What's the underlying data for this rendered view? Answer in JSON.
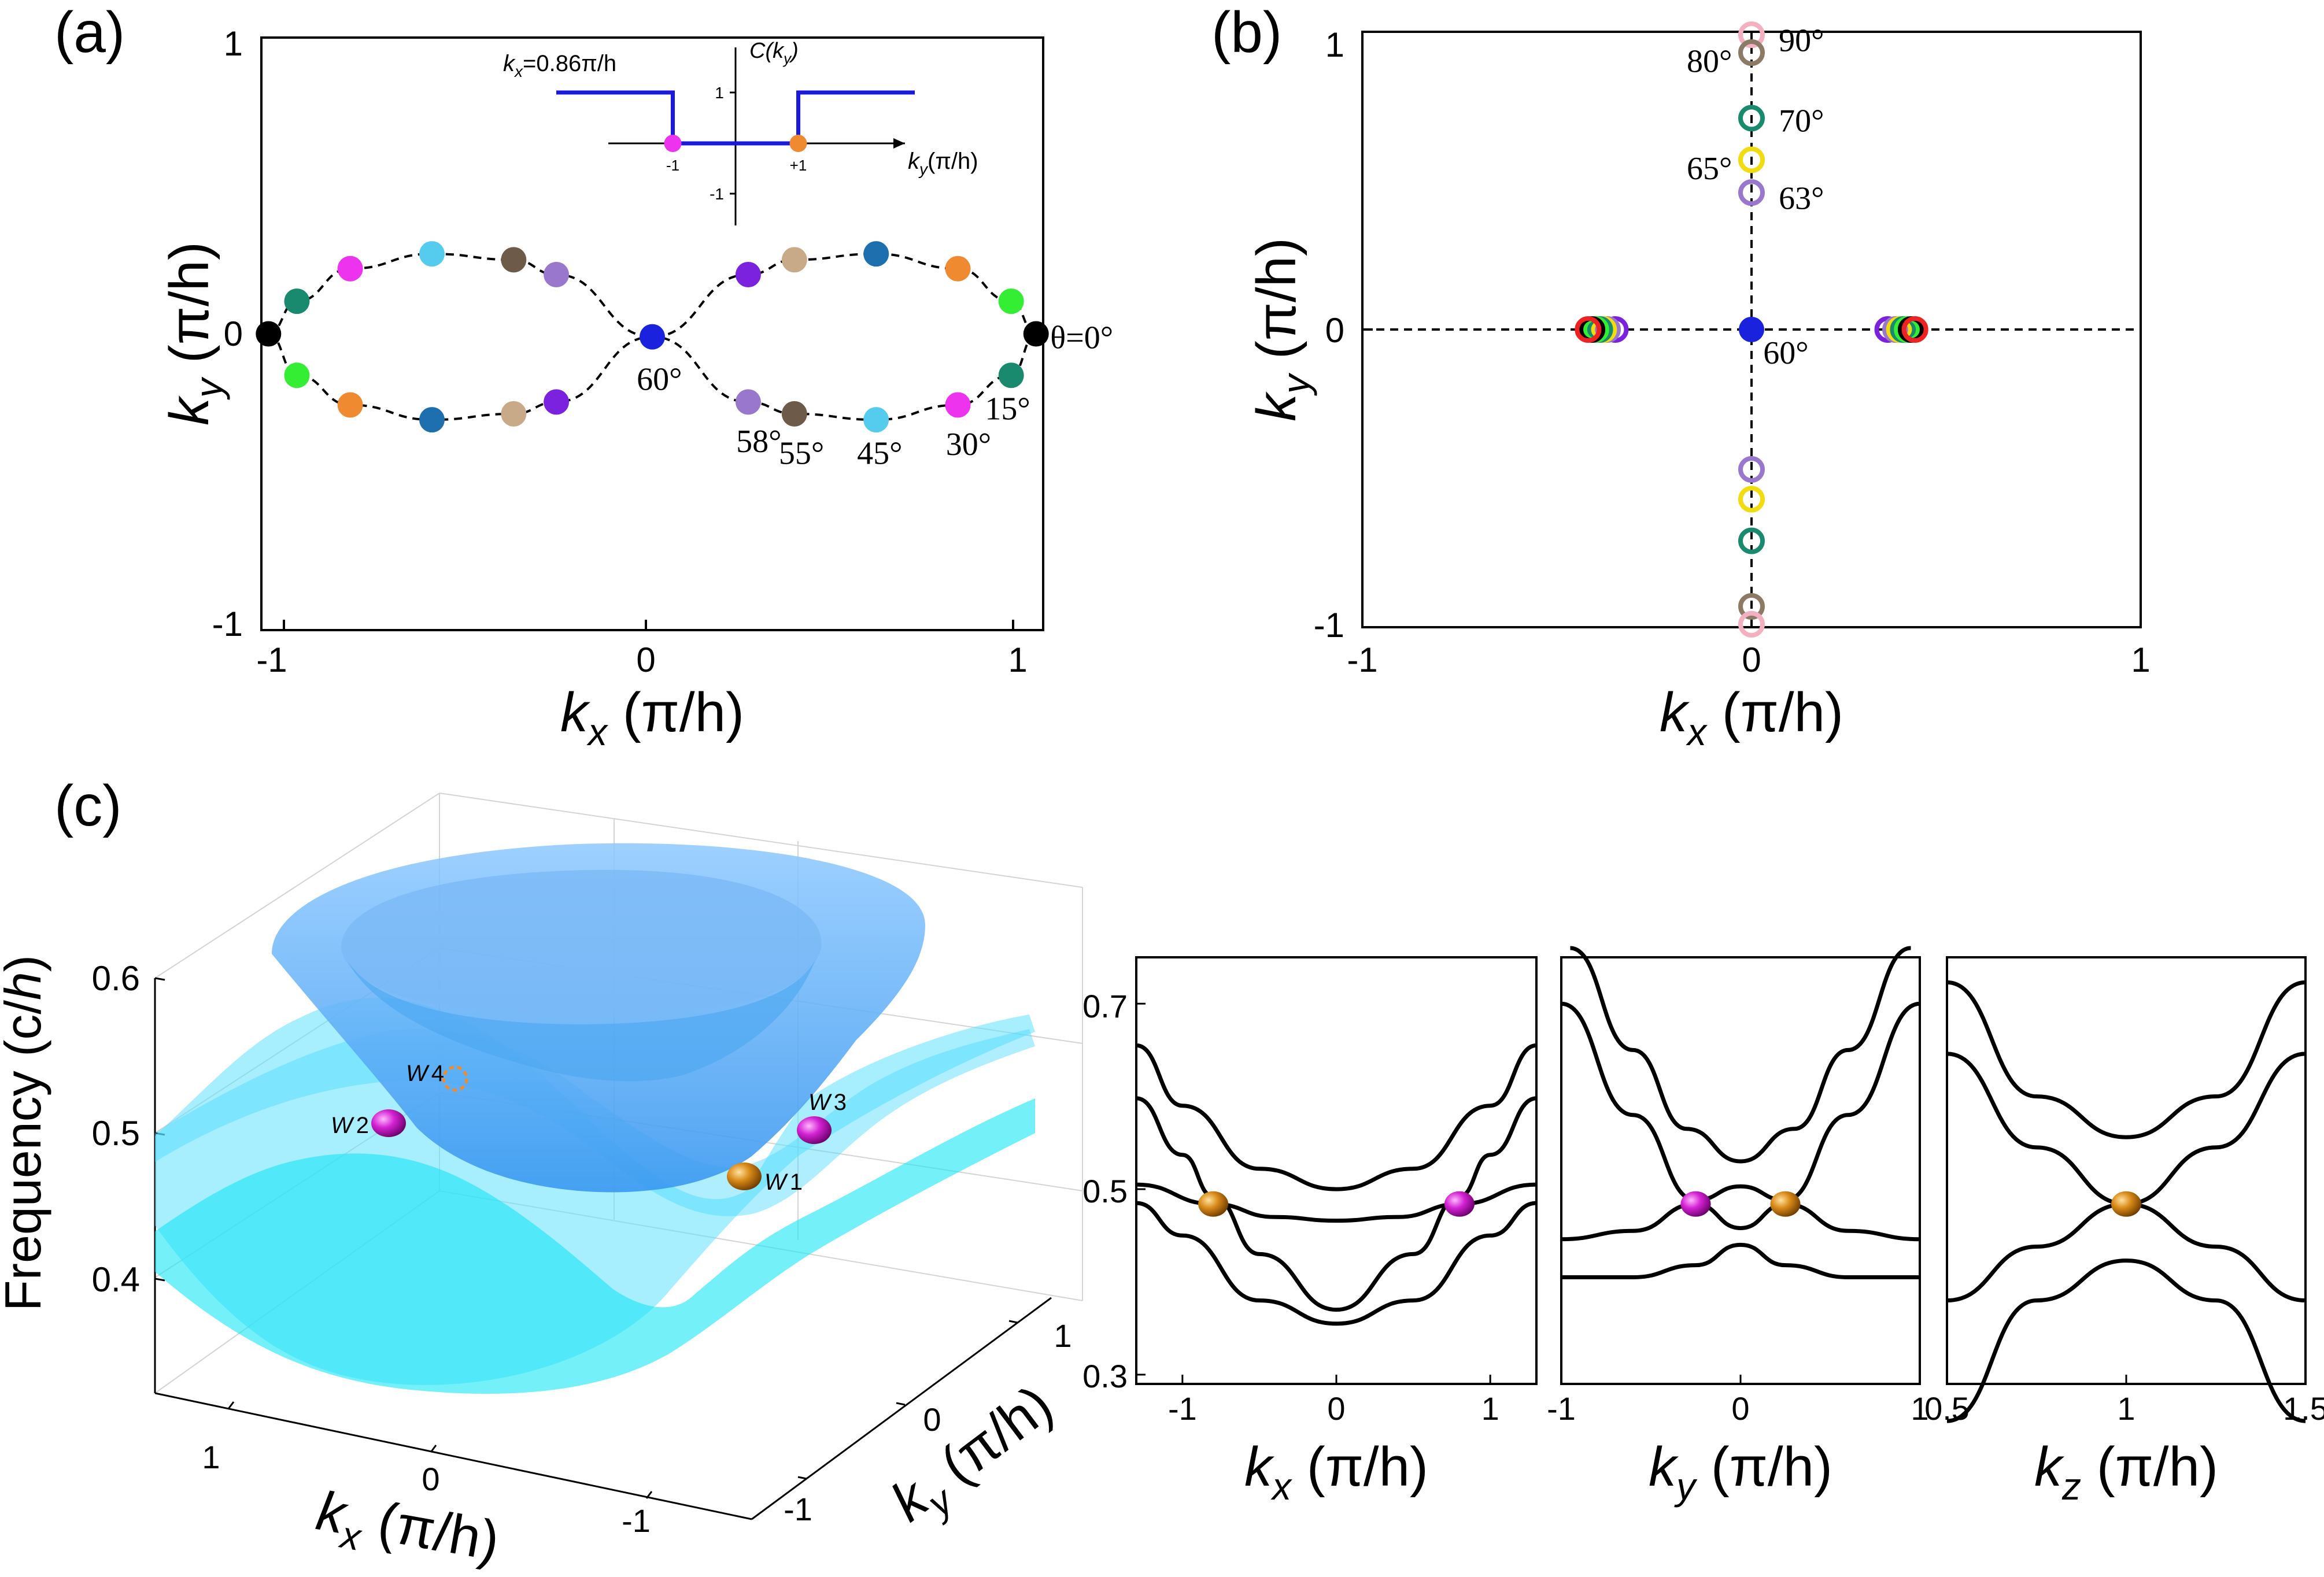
{
  "chart_data": [
    {
      "panel": "a",
      "type": "scatter",
      "panel_label": "(a)",
      "xlabel": {
        "var": "k",
        "sub": "x",
        "unit": " (π/h)"
      },
      "ylabel": {
        "var": "k",
        "sub": "y",
        "unit": " (π/h)"
      },
      "xlim": [
        -1.1,
        1.1
      ],
      "ylim": [
        -1,
        1
      ],
      "xticks": [
        "-1",
        "0",
        "1"
      ],
      "yticks": [
        "1",
        "0",
        "-1"
      ],
      "curve": "dashed figure-eight through the points",
      "points": [
        {
          "x": -1.08,
          "y": 0.0,
          "color": "#000000"
        },
        {
          "x": -1.0,
          "y": 0.11,
          "color": "#1a8a6e"
        },
        {
          "x": -1.0,
          "y": -0.14,
          "color": "#33ee33"
        },
        {
          "x": -0.85,
          "y": 0.22,
          "color": "#ee33ee"
        },
        {
          "x": -0.85,
          "y": -0.24,
          "color": "#f08a30"
        },
        {
          "x": -0.62,
          "y": 0.27,
          "color": "#55ccee"
        },
        {
          "x": -0.62,
          "y": -0.29,
          "color": "#1e6fae"
        },
        {
          "x": -0.39,
          "y": 0.25,
          "color": "#6e5a48"
        },
        {
          "x": -0.39,
          "y": -0.27,
          "color": "#c8aa88"
        },
        {
          "x": -0.27,
          "y": 0.2,
          "color": "#9977cc"
        },
        {
          "x": -0.27,
          "y": -0.23,
          "color": "#7a22dd"
        },
        {
          "x": 0.0,
          "y": -0.01,
          "color": "#1a22dd"
        },
        {
          "x": 0.27,
          "y": 0.2,
          "color": "#7a22dd"
        },
        {
          "x": 0.27,
          "y": -0.23,
          "color": "#9977cc"
        },
        {
          "x": 0.4,
          "y": 0.25,
          "color": "#c8aa88"
        },
        {
          "x": 0.4,
          "y": -0.27,
          "color": "#6e5a48"
        },
        {
          "x": 0.63,
          "y": 0.27,
          "color": "#1e6fae"
        },
        {
          "x": 0.63,
          "y": -0.29,
          "color": "#55ccee"
        },
        {
          "x": 0.86,
          "y": 0.22,
          "color": "#f08a30"
        },
        {
          "x": 0.86,
          "y": -0.24,
          "color": "#ee33ee"
        },
        {
          "x": 1.01,
          "y": 0.11,
          "color": "#33ee33"
        },
        {
          "x": 1.01,
          "y": -0.14,
          "color": "#1a8a6e"
        },
        {
          "x": 1.08,
          "y": 0.0,
          "color": "#000000"
        }
      ],
      "annotations": [
        {
          "text": "θ=0°",
          "x": 1.12,
          "y": -0.01,
          "anchor": "start"
        },
        {
          "text": "15°",
          "x": 1.0,
          "y": -0.25,
          "anchor": "middle"
        },
        {
          "text": "30°",
          "x": 0.89,
          "y": -0.37,
          "anchor": "middle"
        },
        {
          "text": "45°",
          "x": 0.64,
          "y": -0.4,
          "anchor": "middle"
        },
        {
          "text": "55°",
          "x": 0.42,
          "y": -0.4,
          "anchor": "middle"
        },
        {
          "text": "58°",
          "x": 0.3,
          "y": -0.36,
          "anchor": "middle"
        },
        {
          "text": "60°",
          "x": 0.02,
          "y": -0.15,
          "anchor": "middle"
        }
      ],
      "inset": {
        "title_var": "k",
        "title_sub": "x",
        "title_value": "=0.86π/h",
        "ylabel": "C(k",
        "ylabel_sub": "y",
        "ylabel_end": ")",
        "xlabel": "k",
        "xlabel_sub": "y",
        "xlabel_unit": "(π/h)",
        "x": [
          -1.0,
          -0.5,
          0.5,
          1.0
        ],
        "chern_values": [
          1,
          0,
          1
        ],
        "yticks": [
          "1",
          "-1"
        ],
        "markers": [
          {
            "x": -0.35,
            "color": "#ee33ee",
            "label": "-1"
          },
          {
            "x": 0.35,
            "color": "#f08a30",
            "label": "+1"
          }
        ]
      }
    },
    {
      "panel": "b",
      "type": "scatter",
      "panel_label": "(b)",
      "xlabel": {
        "var": "k",
        "sub": "x",
        "unit": " (π/h)"
      },
      "ylabel": {
        "var": "k",
        "sub": "y",
        "unit": " (π/h)"
      },
      "xlim": [
        -1,
        1
      ],
      "ylim": [
        -1,
        1
      ],
      "xticks": [
        "-1",
        "0",
        "1"
      ],
      "yticks": [
        "1",
        "0",
        "-1"
      ],
      "points": [
        {
          "x": 0.0,
          "y": 0.99,
          "color": "#f4b0c0",
          "marker": "open"
        },
        {
          "x": 0.0,
          "y": 0.93,
          "color": "#8c7a66",
          "marker": "open"
        },
        {
          "x": 0.0,
          "y": 0.71,
          "color": "#1a8a6e",
          "marker": "open"
        },
        {
          "x": 0.0,
          "y": 0.57,
          "color": "#f0dc10",
          "marker": "open"
        },
        {
          "x": 0.0,
          "y": 0.46,
          "color": "#9977cc",
          "marker": "open"
        },
        {
          "x": 0.0,
          "y": 0.0,
          "color": "#1a22dd",
          "marker": "filled"
        },
        {
          "x": 0.0,
          "y": -0.47,
          "color": "#9977cc",
          "marker": "open"
        },
        {
          "x": 0.0,
          "y": -0.57,
          "color": "#f0dc10",
          "marker": "open"
        },
        {
          "x": 0.0,
          "y": -0.71,
          "color": "#1a8a6e",
          "marker": "open"
        },
        {
          "x": 0.0,
          "y": -0.93,
          "color": "#8c7a66",
          "marker": "open"
        },
        {
          "x": 0.0,
          "y": -0.99,
          "color": "#f4b0c0",
          "marker": "open"
        },
        {
          "x": -0.35,
          "y": 0.0,
          "color": "#7a22dd",
          "marker": "open"
        },
        {
          "x": -0.37,
          "y": 0.0,
          "color": "#9977cc",
          "marker": "open"
        },
        {
          "x": -0.38,
          "y": 0.0,
          "color": "#f0dc10",
          "marker": "open"
        },
        {
          "x": -0.39,
          "y": 0.0,
          "color": "#1a8a6e",
          "marker": "open"
        },
        {
          "x": -0.4,
          "y": 0.0,
          "color": "#33ee33",
          "marker": "open"
        },
        {
          "x": -0.41,
          "y": 0.0,
          "color": "#000000",
          "marker": "open"
        },
        {
          "x": -0.42,
          "y": 0.0,
          "color": "#ee2222",
          "marker": "open"
        },
        {
          "x": 0.35,
          "y": 0.0,
          "color": "#7a22dd",
          "marker": "open"
        },
        {
          "x": 0.37,
          "y": 0.0,
          "color": "#9977cc",
          "marker": "open"
        },
        {
          "x": 0.38,
          "y": 0.0,
          "color": "#f0dc10",
          "marker": "open"
        },
        {
          "x": 0.39,
          "y": 0.0,
          "color": "#1a8a6e",
          "marker": "open"
        },
        {
          "x": 0.4,
          "y": 0.0,
          "color": "#33ee33",
          "marker": "open"
        },
        {
          "x": 0.41,
          "y": 0.0,
          "color": "#000000",
          "marker": "open"
        },
        {
          "x": 0.42,
          "y": 0.0,
          "color": "#ee2222",
          "marker": "open"
        }
      ],
      "annotations": [
        {
          "text": "90°",
          "x": 0.07,
          "y": 0.97,
          "anchor": "start"
        },
        {
          "text": "80°",
          "x": -0.05,
          "y": 0.9,
          "anchor": "end"
        },
        {
          "text": "70°",
          "x": 0.07,
          "y": 0.7,
          "anchor": "start"
        },
        {
          "text": "65°",
          "x": -0.05,
          "y": 0.54,
          "anchor": "end"
        },
        {
          "text": "63°",
          "x": 0.07,
          "y": 0.44,
          "anchor": "start"
        },
        {
          "text": "60°",
          "x": 0.03,
          "y": -0.08,
          "anchor": "start"
        }
      ]
    },
    {
      "panel": "c",
      "type": "surface",
      "panel_label": "(c)",
      "zlabel": {
        "text": "Frequency (c/",
        "var": "h",
        "end": ")"
      },
      "xlabel": {
        "var": "k",
        "sub": "x",
        "unit": " (π/h)"
      },
      "ylabel": {
        "var": "k",
        "sub": "y",
        "unit": " (π/h)"
      },
      "zticks": [
        "0.6",
        "0.5",
        "0.4"
      ],
      "xticks": [
        "1",
        "0",
        "-1"
      ],
      "yticks": [
        "1",
        "0",
        "-1"
      ],
      "weyl_points": [
        {
          "label": "W",
          "num": "1",
          "color": "#c27a10"
        },
        {
          "label": "W",
          "num": "2",
          "color": "#cc22cc"
        },
        {
          "label": "W",
          "num": "3",
          "color": "#cc22cc"
        },
        {
          "label": "W",
          "num": "4",
          "color": "#f08a30",
          "style": "dashed-open"
        }
      ]
    },
    {
      "panel": "c-kx",
      "type": "line",
      "xlabel": {
        "var": "k",
        "sub": "x",
        "unit": " (π/h)"
      },
      "xlim": [
        -1.3,
        1.3
      ],
      "ylim": [
        0.29,
        0.75
      ],
      "xticks": [
        "-1",
        "0",
        "1"
      ],
      "yticks": [
        "0.7",
        "0.5",
        "0.3"
      ],
      "series": [
        {
          "name": "band4",
          "x": [
            -1.3,
            -1.0,
            -0.5,
            0.0,
            0.5,
            1.0,
            1.3
          ],
          "y": [
            0.655,
            0.59,
            0.522,
            0.5,
            0.522,
            0.59,
            0.655
          ]
        },
        {
          "name": "band3",
          "x": [
            -1.3,
            -1.0,
            -0.8,
            -0.5,
            0.0,
            0.5,
            0.8,
            1.0,
            1.3
          ],
          "y": [
            0.598,
            0.537,
            0.492,
            0.43,
            0.37,
            0.43,
            0.492,
            0.537,
            0.598
          ]
        },
        {
          "name": "band2",
          "x": [
            -1.3,
            -0.8,
            -0.4,
            0.0,
            0.4,
            0.8,
            1.3
          ],
          "y": [
            0.505,
            0.484,
            0.47,
            0.466,
            0.47,
            0.484,
            0.505
          ]
        },
        {
          "name": "band1",
          "x": [
            -1.3,
            -1.0,
            -0.5,
            0.0,
            0.5,
            1.0,
            1.3
          ],
          "y": [
            0.485,
            0.45,
            0.38,
            0.355,
            0.38,
            0.45,
            0.485
          ]
        }
      ],
      "markers": [
        {
          "x": -0.8,
          "y": 0.484,
          "color": "#c27a10"
        },
        {
          "x": 0.8,
          "y": 0.484,
          "color": "#cc22cc"
        }
      ]
    },
    {
      "panel": "c-ky",
      "type": "line",
      "xlabel": {
        "var": "k",
        "sub": "y",
        "unit": " (π/h)"
      },
      "xlim": [
        -1,
        1
      ],
      "ylim": [
        0.29,
        0.75
      ],
      "xticks": [
        "-1",
        "0",
        "1"
      ],
      "series": [
        {
          "name": "band4",
          "x": [
            -0.95,
            -0.6,
            -0.3,
            0.0,
            0.3,
            0.6,
            0.95
          ],
          "y": [
            0.76,
            0.65,
            0.565,
            0.53,
            0.565,
            0.65,
            0.76
          ]
        },
        {
          "name": "band3",
          "x": [
            -1.0,
            -0.6,
            -0.25,
            0.0,
            0.25,
            0.6,
            1.0
          ],
          "y": [
            0.7,
            0.58,
            0.488,
            0.503,
            0.488,
            0.58,
            0.7
          ]
        },
        {
          "name": "band2",
          "x": [
            -1.0,
            -0.6,
            -0.25,
            0.0,
            0.25,
            0.6,
            1.0
          ],
          "y": [
            0.446,
            0.455,
            0.484,
            0.458,
            0.484,
            0.455,
            0.446
          ]
        },
        {
          "name": "band1",
          "x": [
            -1.0,
            -0.6,
            -0.25,
            0.0,
            0.25,
            0.6,
            1.0
          ],
          "y": [
            0.405,
            0.405,
            0.418,
            0.44,
            0.418,
            0.405,
            0.405
          ]
        }
      ],
      "markers": [
        {
          "x": -0.25,
          "y": 0.484,
          "color": "#cc22cc"
        },
        {
          "x": 0.25,
          "y": 0.484,
          "color": "#c27a10"
        }
      ]
    },
    {
      "panel": "c-kz",
      "type": "line",
      "xlabel": {
        "var": "k",
        "sub": "z",
        "unit": " (π/h)"
      },
      "xlim": [
        0.5,
        1.5
      ],
      "ylim": [
        0.29,
        0.75
      ],
      "xticks": [
        "0.5",
        "1",
        "1.5"
      ],
      "series": [
        {
          "name": "band4",
          "x": [
            0.5,
            0.75,
            1.0,
            1.25,
            1.5
          ],
          "y": [
            0.723,
            0.6,
            0.556,
            0.6,
            0.723
          ]
        },
        {
          "name": "band3",
          "x": [
            0.5,
            0.75,
            1.0,
            1.25,
            1.5
          ],
          "y": [
            0.646,
            0.545,
            0.484,
            0.545,
            0.646
          ]
        },
        {
          "name": "band2",
          "x": [
            0.5,
            0.75,
            1.0,
            1.25,
            1.5
          ],
          "y": [
            0.38,
            0.438,
            0.484,
            0.438,
            0.38
          ]
        },
        {
          "name": "band1",
          "x": [
            0.5,
            0.75,
            1.0,
            1.25,
            1.5
          ],
          "y": [
            0.25,
            0.38,
            0.423,
            0.38,
            0.25
          ]
        }
      ],
      "markers": [
        {
          "x": 1.0,
          "y": 0.484,
          "color": "#c27a10"
        }
      ]
    }
  ]
}
